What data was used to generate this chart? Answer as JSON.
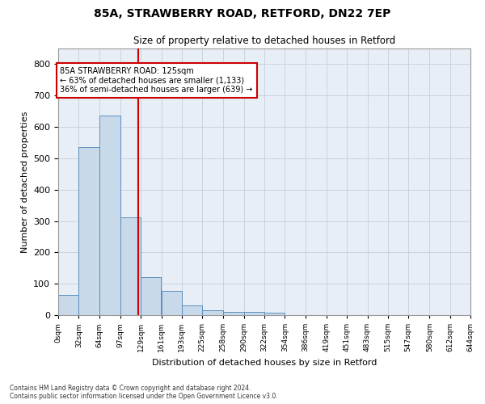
{
  "title_line1": "85A, STRAWBERRY ROAD, RETFORD, DN22 7EP",
  "title_line2": "Size of property relative to detached houses in Retford",
  "xlabel": "Distribution of detached houses by size in Retford",
  "ylabel": "Number of detached properties",
  "bin_edges": [
    0,
    32,
    64,
    97,
    129,
    161,
    193,
    225,
    258,
    290,
    322,
    354,
    386,
    419,
    451,
    483,
    515,
    547,
    580,
    612,
    644
  ],
  "bar_heights": [
    65,
    535,
    635,
    312,
    120,
    78,
    30,
    15,
    10,
    10,
    8,
    0,
    0,
    0,
    0,
    0,
    0,
    0,
    0,
    0
  ],
  "bar_color": "#c8d9ea",
  "bar_edge_color": "#5a8fc0",
  "property_line_x": 125,
  "property_line_color": "#cc0000",
  "annotation_line1": "85A STRAWBERRY ROAD: 125sqm",
  "annotation_line2": "← 63% of detached houses are smaller (1,133)",
  "annotation_line3": "36% of semi-detached houses are larger (639) →",
  "annotation_box_color": "#ffffff",
  "annotation_box_edge": "#cc0000",
  "ylim": [
    0,
    850
  ],
  "yticks": [
    0,
    100,
    200,
    300,
    400,
    500,
    600,
    700,
    800
  ],
  "grid_color": "#c0c8d8",
  "background_color": "#e8eef5",
  "fig_background": "#ffffff",
  "footnote1": "Contains HM Land Registry data © Crown copyright and database right 2024.",
  "footnote2": "Contains public sector information licensed under the Open Government Licence v3.0.",
  "tick_labels": [
    "0sqm",
    "32sqm",
    "64sqm",
    "97sqm",
    "129sqm",
    "161sqm",
    "193sqm",
    "225sqm",
    "258sqm",
    "290sqm",
    "322sqm",
    "354sqm",
    "386sqm",
    "419sqm",
    "451sqm",
    "483sqm",
    "515sqm",
    "547sqm",
    "580sqm",
    "612sqm",
    "644sqm"
  ]
}
